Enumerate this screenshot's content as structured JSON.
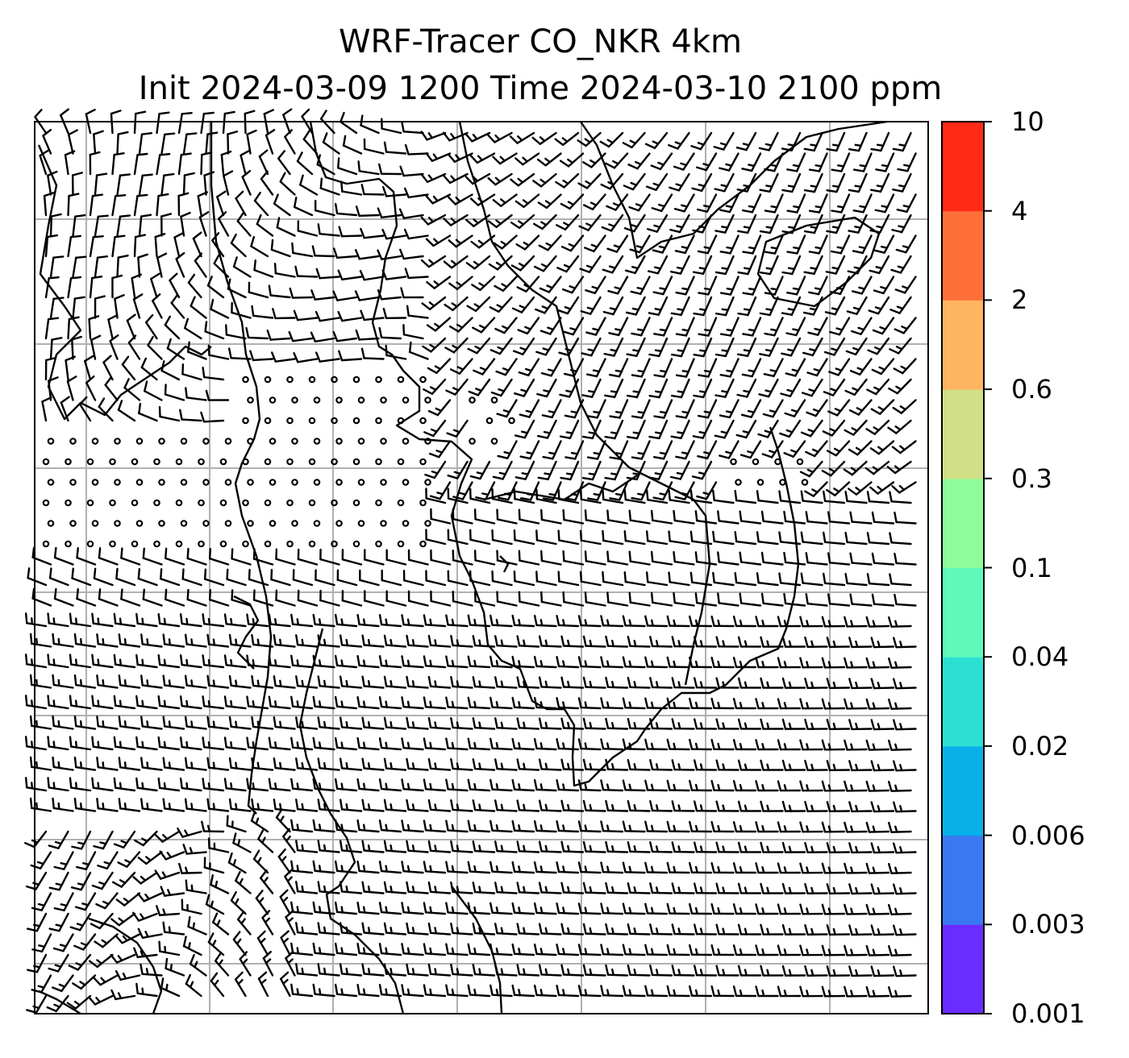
{
  "title": {
    "line1": "WRF-Tracer CO_NKR 4km",
    "line2": "Init 2024-03-09 1200 Time 2024-03-10 2100 ppm"
  },
  "colorbar": {
    "unit": "ppm",
    "levels": [
      "0.001",
      "0.003",
      "0.006",
      "0.02",
      "0.04",
      "0.1",
      "0.3",
      "0.6",
      "2",
      "4",
      "10"
    ],
    "colors": [
      "#6a2cff",
      "#3a78f2",
      "#08b0ea",
      "#2ddfd3",
      "#5ffab9",
      "#8ffb9a",
      "#d1e086",
      "#ffb460",
      "#ff7038",
      "#ff2a16"
    ]
  },
  "map": {
    "wind_barbs": true,
    "coastlines": true,
    "gridlines": true,
    "grid_color": "#b0b0b0",
    "frame_color": "#000000"
  }
}
